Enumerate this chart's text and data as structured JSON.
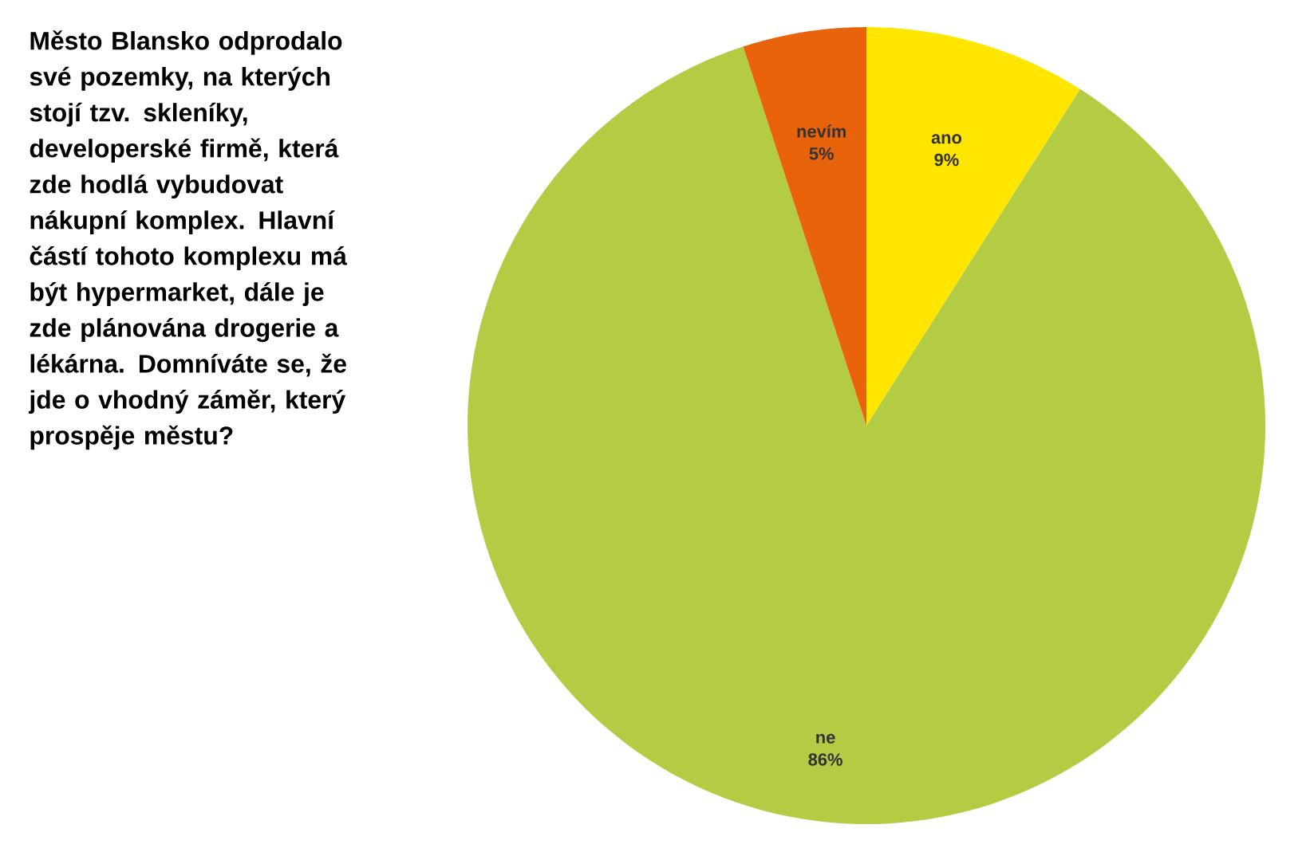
{
  "chart_data": {
    "type": "pie",
    "title": "Město Blansko odprodalo své pozemky, na kterých stojí tzv. skleníky, developerské firmě, která zde hodlá vybudovat nákupní komplex. Hlavní částí tohoto komplexu má být hypermarket, dále je zde plánována drogerie a lékárna. Domníváte se, že jde o vhodný záměr, který prospěje městu?",
    "categories": [
      "ano",
      "ne",
      "nevím"
    ],
    "values": [
      9,
      86,
      5
    ],
    "value_labels": [
      "9%",
      "86%",
      "5%"
    ],
    "colors": [
      "#ffe600",
      "#b3cc44",
      "#e8630a"
    ]
  }
}
